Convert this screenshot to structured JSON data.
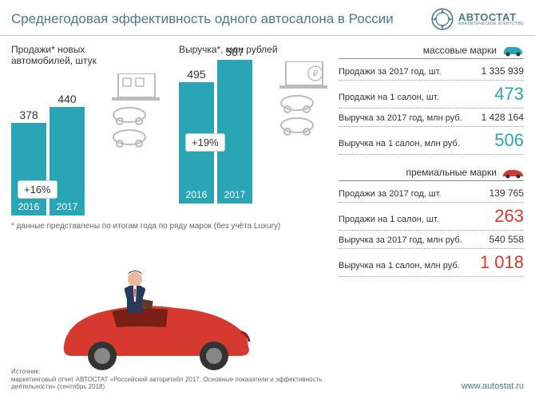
{
  "title": "Среднегодовая эффективность одного автосалона в России",
  "logo": {
    "main": "АВТОСТАТ",
    "sub": "АНАЛИТИЧЕСКОЕ АГЕНТСТВО"
  },
  "charts": {
    "sales": {
      "title": "Продажи* новых\nавтомобилей, штук",
      "bars": [
        {
          "year": "2016",
          "value": 378,
          "height": 116
        },
        {
          "year": "2017",
          "value": 440,
          "height": 136
        }
      ],
      "change": "+16%",
      "bar_color": "#2aa5b5"
    },
    "revenue": {
      "title": "Выручка*, млн рублей",
      "bars": [
        {
          "year": "2016",
          "value": 495,
          "height": 152
        },
        {
          "year": "2017",
          "value": 587,
          "height": 180
        }
      ],
      "change": "+19%",
      "bar_color": "#2aa5b5"
    }
  },
  "footnote": "* данные представлены по итогам года по ряду марок (без учёта Luxury)",
  "mass": {
    "title": "массовые марки",
    "icon_color": "#2aa5b5",
    "rows": [
      {
        "label": "Продажи за 2017 год, шт.",
        "value": "1 335 939",
        "big": false
      },
      {
        "label": "Продажи на 1 салон, шт.",
        "value": "473",
        "big": true
      },
      {
        "label": "Выручка за 2017 год, млн руб.",
        "value": "1 428 164",
        "big": false
      },
      {
        "label": "Выручка на 1 салон, млн руб.",
        "value": "506",
        "big": true
      }
    ]
  },
  "premium": {
    "title": "премиальные марки",
    "icon_color": "#d63a2e",
    "rows": [
      {
        "label": "Продажи за 2017 год, шт.",
        "value": "139 765",
        "big": false
      },
      {
        "label": "Продажи на 1 салон, шт.",
        "value": "263",
        "big": true
      },
      {
        "label": "Выручка за 2017 год, млн руб.",
        "value": "540 558",
        "big": false
      },
      {
        "label": "Выручка на 1 салон, млн руб.",
        "value": "1 018",
        "big": true
      }
    ]
  },
  "source": {
    "label": "Источник:",
    "text": "маркетинговый отчет АВТОСТАТ «Российский авторитейл 2017. Основные показатели и эффективность деятельности» (сентябрь 2018)"
  },
  "url": "www.autostat.ru"
}
